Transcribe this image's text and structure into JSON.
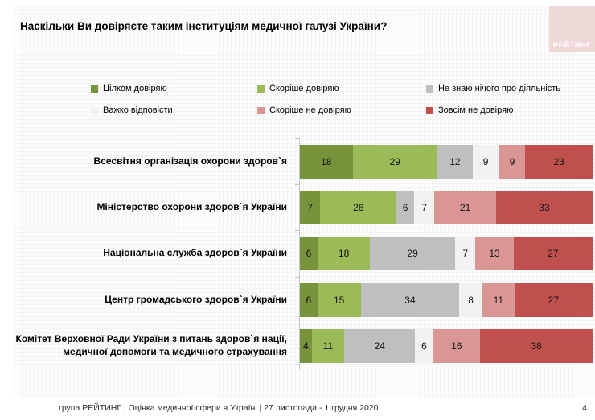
{
  "slide": {
    "title": "Наскільки Ви довіряєте таким інституціям медичної галузі України?",
    "logo_text": "РЕЙТИНГ",
    "footer": "група РЕЙТИНГ  |  Оцінка медичної сфери в Україні  | 27 листопада - 1 грудня 2020",
    "page_number": "4"
  },
  "colors": {
    "logo_background": "#efd9d8",
    "logo_text": "#ffffff",
    "axis": "#c6c6c6",
    "fully_trust": "#77933c",
    "rather_trust": "#9bbb59",
    "know_nothing": "#bfbfbf",
    "hard_to_say": "#f2f2f2",
    "rather_distrust": "#d99694",
    "fully_distrust": "#c0504d"
  },
  "chart_data": {
    "type": "bar",
    "orientation": "horizontal-stacked",
    "title": "Наскільки Ви довіряєте таким інституціям медичної галузі України?",
    "xlim": [
      0,
      100
    ],
    "grid": false,
    "legend_position": "top",
    "legend_columns": 3,
    "value_labels": "inside",
    "categories": [
      "Всесвітня організація охорони здоров`я",
      "Міністерство охорони здоров`я України",
      "Національна служба здоров`я України",
      "Центр громадського здоров`я України",
      "Комітет Верховної Ради України з питань здоров`я нації, медичної допомоги та медичного страхування"
    ],
    "series": [
      {
        "name": "Цілком довіряю",
        "color": "#77933c",
        "values": [
          18,
          7,
          6,
          6,
          4
        ]
      },
      {
        "name": "Скоріше довіряю",
        "color": "#9bbb59",
        "values": [
          29,
          26,
          18,
          15,
          11
        ]
      },
      {
        "name": "Не знаю нічого про діяльність",
        "color": "#bfbfbf",
        "values": [
          12,
          6,
          29,
          34,
          24
        ]
      },
      {
        "name": "Важко відповісти",
        "color": "#f2f2f2",
        "values": [
          9,
          7,
          7,
          8,
          6
        ]
      },
      {
        "name": "Скоріше не довіряю",
        "color": "#d99694",
        "values": [
          9,
          21,
          13,
          11,
          16
        ]
      },
      {
        "name": "Зовсім не довіряю",
        "color": "#c0504d",
        "values": [
          23,
          33,
          27,
          27,
          38
        ]
      }
    ]
  }
}
